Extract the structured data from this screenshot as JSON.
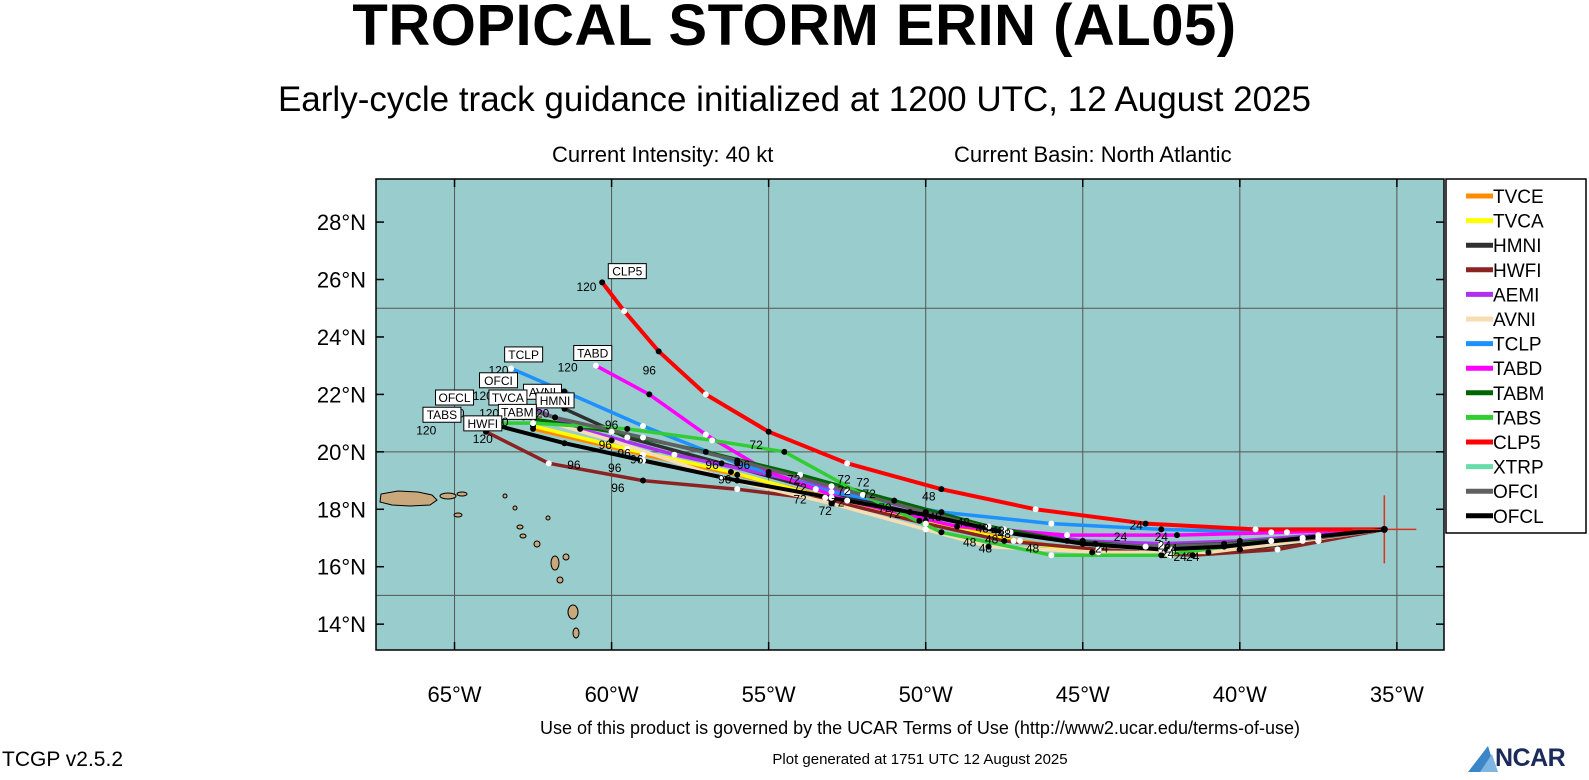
{
  "title": "TROPICAL STORM ERIN (AL05)",
  "subtitle": "Early-cycle track guidance initialized at 1200 UTC, 12 August 2025",
  "info": {
    "intensity": "Current Intensity: 40 kt",
    "basin": "Current Basin: North Atlantic"
  },
  "footer": {
    "terms": "Use of this product is governed by the UCAR Terms of Use (http://www2.ucar.edu/terms-of-use)",
    "generated": "Plot generated at 1751 UTC   12 August 2025",
    "version": "TCGP v2.5.2",
    "logo_text": "NCAR"
  },
  "colors": {
    "ocean": "#99cccc",
    "land": "#c9a87c",
    "grid": "#555555"
  },
  "chart_data": {
    "type": "line",
    "title": "TROPICAL STORM ERIN (AL05)",
    "subtitle": "Early-cycle track guidance initialized at 1200 UTC, 12 August 2025",
    "xlim": [
      -67.5,
      -33.5
    ],
    "ylim": [
      13.1,
      29.5
    ],
    "x_ticks": [
      {
        "v": -65,
        "label": "65°W"
      },
      {
        "v": -60,
        "label": "60°W"
      },
      {
        "v": -55,
        "label": "55°W"
      },
      {
        "v": -50,
        "label": "50°W"
      },
      {
        "v": -45,
        "label": "45°W"
      },
      {
        "v": -40,
        "label": "40°W"
      },
      {
        "v": -35,
        "label": "35°W"
      }
    ],
    "y_ticks": [
      {
        "v": 14,
        "label": "14°N"
      },
      {
        "v": 16,
        "label": "16°N"
      },
      {
        "v": 18,
        "label": "18°N"
      },
      {
        "v": 20,
        "label": "20°N"
      },
      {
        "v": 22,
        "label": "22°N"
      },
      {
        "v": 24,
        "label": "24°N"
      },
      {
        "v": 26,
        "label": "26°N"
      },
      {
        "v": 28,
        "label": "28°N"
      }
    ],
    "grid_lon": [
      -65,
      -60,
      -55,
      -50,
      -45,
      -40,
      -35
    ],
    "grid_lat": [
      15,
      20,
      25
    ],
    "storm_position": {
      "lon": -35.4,
      "lat": 17.3
    },
    "series": [
      {
        "name": "TVCE",
        "color": "#ff8c00",
        "lon": [
          -35.4,
          -37.5,
          -40.0,
          -42.2,
          -44.5,
          -47.0,
          -50.0,
          -53.0,
          -56.0,
          -59.0,
          -62.5
        ],
        "lat": [
          17.3,
          16.9,
          16.6,
          16.4,
          16.5,
          16.9,
          17.6,
          18.4,
          19.2,
          19.9,
          20.8
        ]
      },
      {
        "name": "TVCA",
        "color": "#ffff00",
        "lon": [
          -35.4,
          -37.5,
          -40.0,
          -42.3,
          -44.7,
          -47.2,
          -50.2,
          -53.2,
          -56.2,
          -59.5,
          -62.5
        ],
        "lat": [
          17.3,
          16.9,
          16.6,
          16.45,
          16.5,
          16.9,
          17.6,
          18.4,
          19.3,
          20.1,
          20.9
        ]
      },
      {
        "name": "HMNI",
        "color": "#303030",
        "lon": [
          -35.4,
          -37.5,
          -40.0,
          -42.2,
          -44.6,
          -47.3,
          -50.5,
          -53.5,
          -56.5,
          -59.5,
          -61.5
        ],
        "lat": [
          17.3,
          16.9,
          16.6,
          16.6,
          16.8,
          17.2,
          17.9,
          18.7,
          19.6,
          20.5,
          21.5
        ]
      },
      {
        "name": "HWFI",
        "color": "#8b2323",
        "lon": [
          -35.4,
          -38.8,
          -41.5,
          -44.5,
          -47.5,
          -50.0,
          -53.0,
          -56.0,
          -59.0,
          -62.0,
          -64.0
        ],
        "lat": [
          17.3,
          16.6,
          16.4,
          16.6,
          16.9,
          17.5,
          18.3,
          18.7,
          19.0,
          19.6,
          20.7
        ]
      },
      {
        "name": "AEMI",
        "color": "#b030f0",
        "lon": [
          -35.4,
          -37.5,
          -40.0,
          -42.5,
          -45.0,
          -47.5,
          -50.0,
          -52.5,
          -55.0,
          -58.0,
          -61.0,
          -63.5
        ],
        "lat": [
          17.3,
          17.1,
          16.9,
          16.8,
          16.9,
          17.3,
          17.9,
          18.6,
          19.2,
          19.9,
          20.8,
          22.0
        ]
      },
      {
        "name": "AVNI",
        "color": "#f5deb3",
        "lon": [
          -35.4,
          -38.0,
          -41.0,
          -44.5,
          -48.0,
          -50.0,
          -53.0,
          -56.5,
          -60.0,
          -62.5
        ],
        "lat": [
          17.3,
          16.9,
          16.5,
          16.5,
          16.7,
          17.3,
          18.2,
          19.1,
          20.4,
          21.2
        ]
      },
      {
        "name": "TCLP",
        "color": "#1e90ff",
        "lon": [
          -35.4,
          -39.0,
          -42.5,
          -46.0,
          -49.5,
          -53.0,
          -56.0,
          -59.0,
          -61.5,
          -63.2
        ],
        "lat": [
          17.3,
          17.2,
          17.3,
          17.5,
          17.9,
          18.6,
          19.6,
          20.9,
          22.1,
          22.9
        ]
      },
      {
        "name": "TABD",
        "color": "#ff00ff",
        "lon": [
          -35.4,
          -38.5,
          -42.0,
          -45.5,
          -49.0,
          -52.5,
          -55.0,
          -57.0,
          -58.8,
          -60.5
        ],
        "lat": [
          17.3,
          17.2,
          17.1,
          17.1,
          17.4,
          18.3,
          19.3,
          20.6,
          22.0,
          23.0
        ]
      },
      {
        "name": "TABM",
        "color": "#006400",
        "lon": [
          -35.4,
          -38.0,
          -40.5,
          -43.0,
          -45.5,
          -48.0,
          -51.0,
          -54.0,
          -57.0,
          -60.0,
          -62.8
        ],
        "lat": [
          17.3,
          17.0,
          16.8,
          16.7,
          16.9,
          17.4,
          18.3,
          19.2,
          20.0,
          20.7,
          21.2
        ]
      },
      {
        "name": "TABS",
        "color": "#32cd32",
        "lon": [
          -35.4,
          -39.0,
          -42.5,
          -46.0,
          -49.5,
          -52.0,
          -54.5,
          -56.8,
          -59.5,
          -62.5,
          -64.5
        ],
        "lat": [
          17.3,
          16.9,
          16.4,
          16.4,
          17.2,
          18.5,
          20.0,
          20.4,
          20.8,
          21.0,
          21.0
        ]
      },
      {
        "name": "CLP5",
        "color": "#ff0000",
        "lon": [
          -35.4,
          -39.5,
          -43.0,
          -46.5,
          -49.5,
          -52.5,
          -55.0,
          -57.0,
          -58.5,
          -59.6,
          -60.3
        ],
        "lat": [
          17.3,
          17.3,
          17.5,
          18.0,
          18.7,
          19.6,
          20.7,
          22.0,
          23.5,
          24.9,
          25.9
        ]
      },
      {
        "name": "XTRP",
        "color": "#66ddaa",
        "lon": [],
        "lat": []
      },
      {
        "name": "OFCI",
        "color": "#606060",
        "lon": [
          -35.4,
          -37.5,
          -40.0,
          -42.5,
          -45.0,
          -47.5,
          -50.0,
          -53.0,
          -56.0,
          -59.0,
          -61.8,
          -63.8
        ],
        "lat": [
          17.3,
          17.0,
          16.8,
          16.7,
          16.8,
          17.2,
          17.9,
          18.8,
          19.7,
          20.5,
          21.2,
          21.8
        ]
      },
      {
        "name": "OFCL",
        "color": "#000000",
        "lon": [
          -35.4,
          -38.0,
          -40.5,
          -42.5,
          -45.0,
          -47.5,
          -50.0,
          -53.0,
          -56.0,
          -59.0,
          -61.5,
          -63.6
        ],
        "lat": [
          17.3,
          17.0,
          16.7,
          16.6,
          16.8,
          17.2,
          17.8,
          18.4,
          19.0,
          19.7,
          20.3,
          20.9
        ]
      }
    ],
    "track_labels": [
      {
        "model": "CLP5",
        "lon": -60.3,
        "lat": 25.9,
        "anchor": [
          -59.5,
          26.1
        ],
        "code": "120",
        "code_at": [
          -60.8,
          25.6
        ]
      },
      {
        "model": "TABD",
        "lon": -60.5,
        "lat": 23.0,
        "anchor": [
          -60.6,
          23.25
        ],
        "code": "120",
        "code_at": [
          -61.4,
          22.8
        ]
      },
      {
        "model": "TCLP",
        "lon": -63.2,
        "lat": 22.9,
        "anchor": [
          -62.8,
          23.2
        ],
        "code": "120",
        "code_at": [
          -63.6,
          22.7
        ]
      },
      {
        "model": "OFCI",
        "lon": -63.8,
        "lat": 21.8,
        "anchor": [
          -63.6,
          22.3
        ],
        "code": "120",
        "code_at": [
          -64.1,
          21.8
        ]
      },
      {
        "model": "AVNI",
        "lon": -62.5,
        "lat": 21.2,
        "anchor": [
          -62.2,
          21.9
        ],
        "code": "120",
        "code_at": [
          -63.0,
          21.5
        ]
      },
      {
        "model": "HMNI",
        "lon": -61.5,
        "lat": 21.5,
        "anchor": [
          -61.8,
          21.6
        ],
        "code": "120",
        "code_at": [
          -62.3,
          21.2
        ]
      },
      {
        "model": "OFCL",
        "lon": -63.6,
        "lat": 20.9,
        "anchor": [
          -65.0,
          21.7
        ],
        "code": "120",
        "code_at": [
          -65.0,
          21.2
        ]
      },
      {
        "model": "TVCA",
        "lon": -62.5,
        "lat": 20.9,
        "anchor": [
          -63.3,
          21.7
        ],
        "code": "120",
        "code_at": [
          -63.9,
          21.2
        ]
      },
      {
        "model": "TABM",
        "lon": -62.8,
        "lat": 21.2,
        "anchor": [
          -63.0,
          21.2
        ],
        "code": "120",
        "code_at": [
          -63.6,
          20.9
        ]
      },
      {
        "model": "TABS",
        "lon": -64.5,
        "lat": 21.0,
        "anchor": [
          -65.4,
          21.1
        ],
        "code": "120",
        "code_at": [
          -65.9,
          20.6
        ]
      },
      {
        "model": "HWFI",
        "lon": -64.0,
        "lat": 20.7,
        "anchor": [
          -64.1,
          20.8
        ],
        "code": "120",
        "code_at": [
          -64.1,
          20.3
        ]
      }
    ],
    "hour_labels": [
      {
        "t": "96",
        "lon": -58.8,
        "lat": 22.7
      },
      {
        "t": "96",
        "lon": -60.0,
        "lat": 20.8
      },
      {
        "t": "96",
        "lon": -60.2,
        "lat": 20.1
      },
      {
        "t": "96",
        "lon": -59.6,
        "lat": 19.8
      },
      {
        "t": "96",
        "lon": -59.2,
        "lat": 19.6
      },
      {
        "t": "96",
        "lon": -56.8,
        "lat": 19.4
      },
      {
        "t": "96",
        "lon": -55.8,
        "lat": 19.4
      },
      {
        "t": "96",
        "lon": -61.2,
        "lat": 19.4
      },
      {
        "t": "96",
        "lon": -59.9,
        "lat": 19.3
      },
      {
        "t": "96",
        "lon": -56.4,
        "lat": 18.9
      },
      {
        "t": "96",
        "lon": -59.8,
        "lat": 18.6
      },
      {
        "t": "72",
        "lon": -55.4,
        "lat": 20.1
      },
      {
        "t": "72",
        "lon": -54.2,
        "lat": 18.9
      },
      {
        "t": "72",
        "lon": -52.6,
        "lat": 18.9
      },
      {
        "t": "72",
        "lon": -52.0,
        "lat": 18.8
      },
      {
        "t": "72",
        "lon": -54.0,
        "lat": 18.6
      },
      {
        "t": "72",
        "lon": -52.6,
        "lat": 18.5
      },
      {
        "t": "72",
        "lon": -51.8,
        "lat": 18.4
      },
      {
        "t": "72",
        "lon": -54.0,
        "lat": 18.2
      },
      {
        "t": "72",
        "lon": -52.8,
        "lat": 18.1
      },
      {
        "t": "72",
        "lon": -51.3,
        "lat": 17.9
      },
      {
        "t": "72",
        "lon": -53.2,
        "lat": 17.8
      },
      {
        "t": "72",
        "lon": -51.0,
        "lat": 17.7
      },
      {
        "t": "48",
        "lon": -49.9,
        "lat": 18.3
      },
      {
        "t": "48",
        "lon": -49.7,
        "lat": 17.6
      },
      {
        "t": "48",
        "lon": -48.8,
        "lat": 17.4
      },
      {
        "t": "48",
        "lon": -48.2,
        "lat": 17.2
      },
      {
        "t": "48",
        "lon": -47.7,
        "lat": 17.1
      },
      {
        "t": "48",
        "lon": -47.5,
        "lat": 17.0
      },
      {
        "t": "48",
        "lon": -47.9,
        "lat": 16.8
      },
      {
        "t": "48",
        "lon": -48.6,
        "lat": 16.7
      },
      {
        "t": "48",
        "lon": -48.1,
        "lat": 16.5
      },
      {
        "t": "48",
        "lon": -46.6,
        "lat": 16.5
      },
      {
        "t": "24",
        "lon": -43.3,
        "lat": 17.3
      },
      {
        "t": "24",
        "lon": -42.5,
        "lat": 16.9
      },
      {
        "t": "24",
        "lon": -43.8,
        "lat": 16.9
      },
      {
        "t": "24",
        "lon": -44.4,
        "lat": 16.5
      },
      {
        "t": "24",
        "lon": -42.4,
        "lat": 16.6
      },
      {
        "t": "24",
        "lon": -42.2,
        "lat": 16.5
      },
      {
        "t": "24",
        "lon": -42.3,
        "lat": 16.3
      },
      {
        "t": "24",
        "lon": -41.9,
        "lat": 16.2
      },
      {
        "t": "24",
        "lon": -41.5,
        "lat": 16.2
      }
    ],
    "legend": [
      {
        "name": "TVCE",
        "color": "#ff8c00"
      },
      {
        "name": "TVCA",
        "color": "#ffff00"
      },
      {
        "name": "HMNI",
        "color": "#303030"
      },
      {
        "name": "HWFI",
        "color": "#8b2323"
      },
      {
        "name": "AEMI",
        "color": "#b030f0"
      },
      {
        "name": "AVNI",
        "color": "#f5deb3"
      },
      {
        "name": "TCLP",
        "color": "#1e90ff"
      },
      {
        "name": "TABD",
        "color": "#ff00ff"
      },
      {
        "name": "TABM",
        "color": "#006400"
      },
      {
        "name": "TABS",
        "color": "#32cd32"
      },
      {
        "name": "CLP5",
        "color": "#ff0000"
      },
      {
        "name": "XTRP",
        "color": "#66ddaa"
      },
      {
        "name": "OFCI",
        "color": "#606060"
      },
      {
        "name": "OFCL",
        "color": "#000000"
      }
    ]
  }
}
